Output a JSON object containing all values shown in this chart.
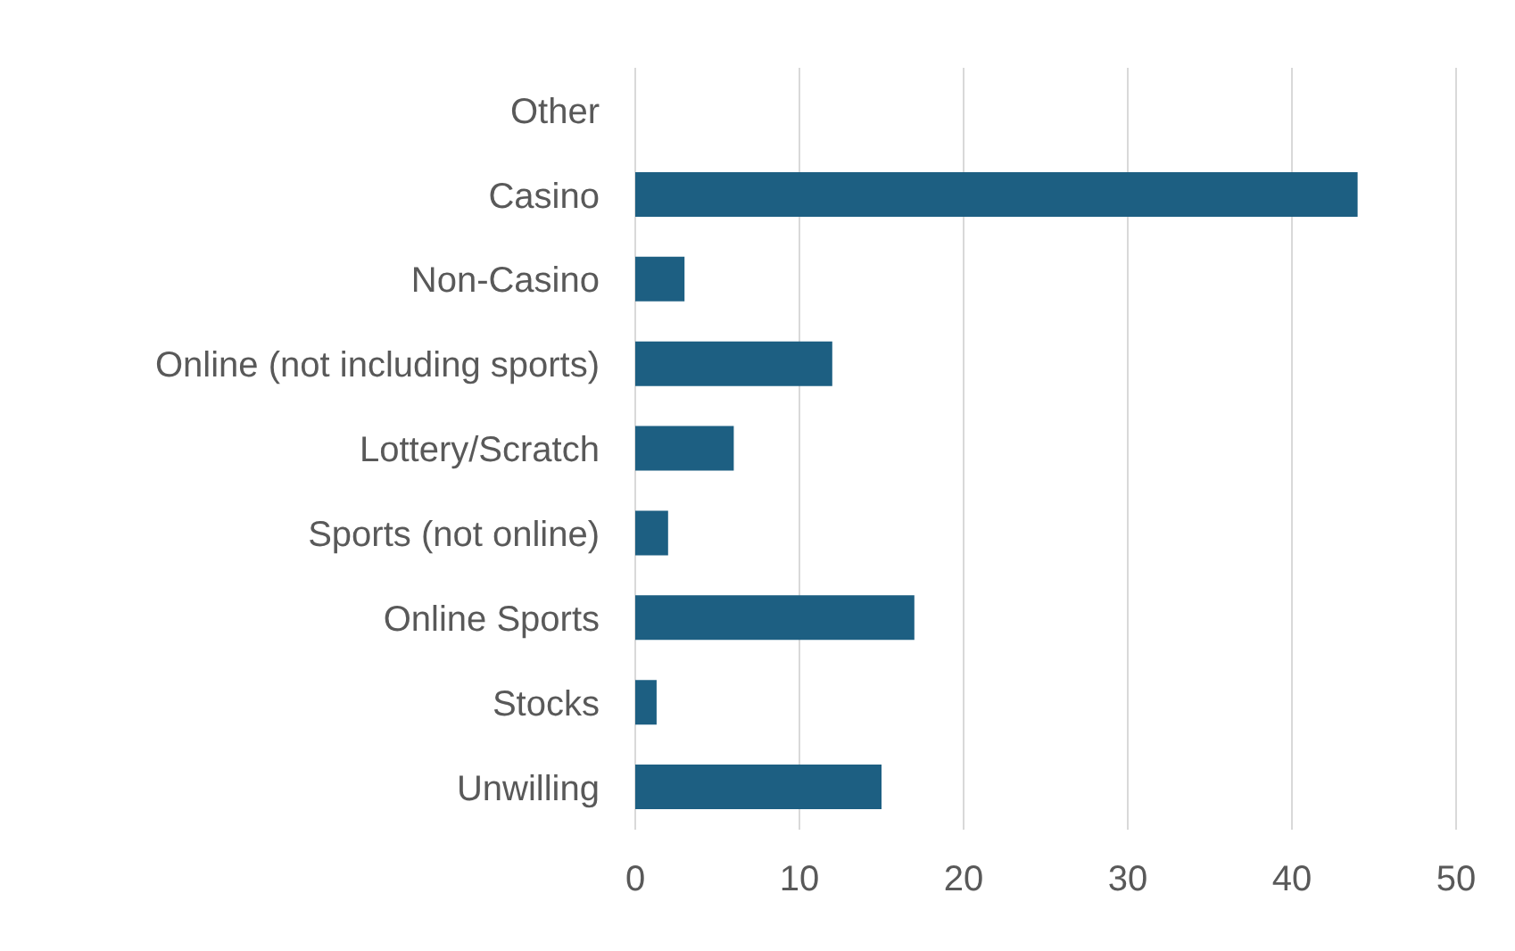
{
  "chart_data": {
    "type": "bar",
    "orientation": "horizontal",
    "categories": [
      "Other",
      "Casino",
      "Non-Casino",
      "Online (not including sports)",
      "Lottery/Scratch",
      "Sports (not online)",
      "Online Sports",
      "Stocks",
      "Unwilling"
    ],
    "values": [
      0,
      44,
      3,
      12,
      6,
      2,
      17,
      1.3,
      15
    ],
    "color": "#1d5f82",
    "xlim": [
      0,
      50
    ],
    "xticks": [
      0,
      10,
      20,
      30,
      40,
      50
    ],
    "grid": "x"
  }
}
